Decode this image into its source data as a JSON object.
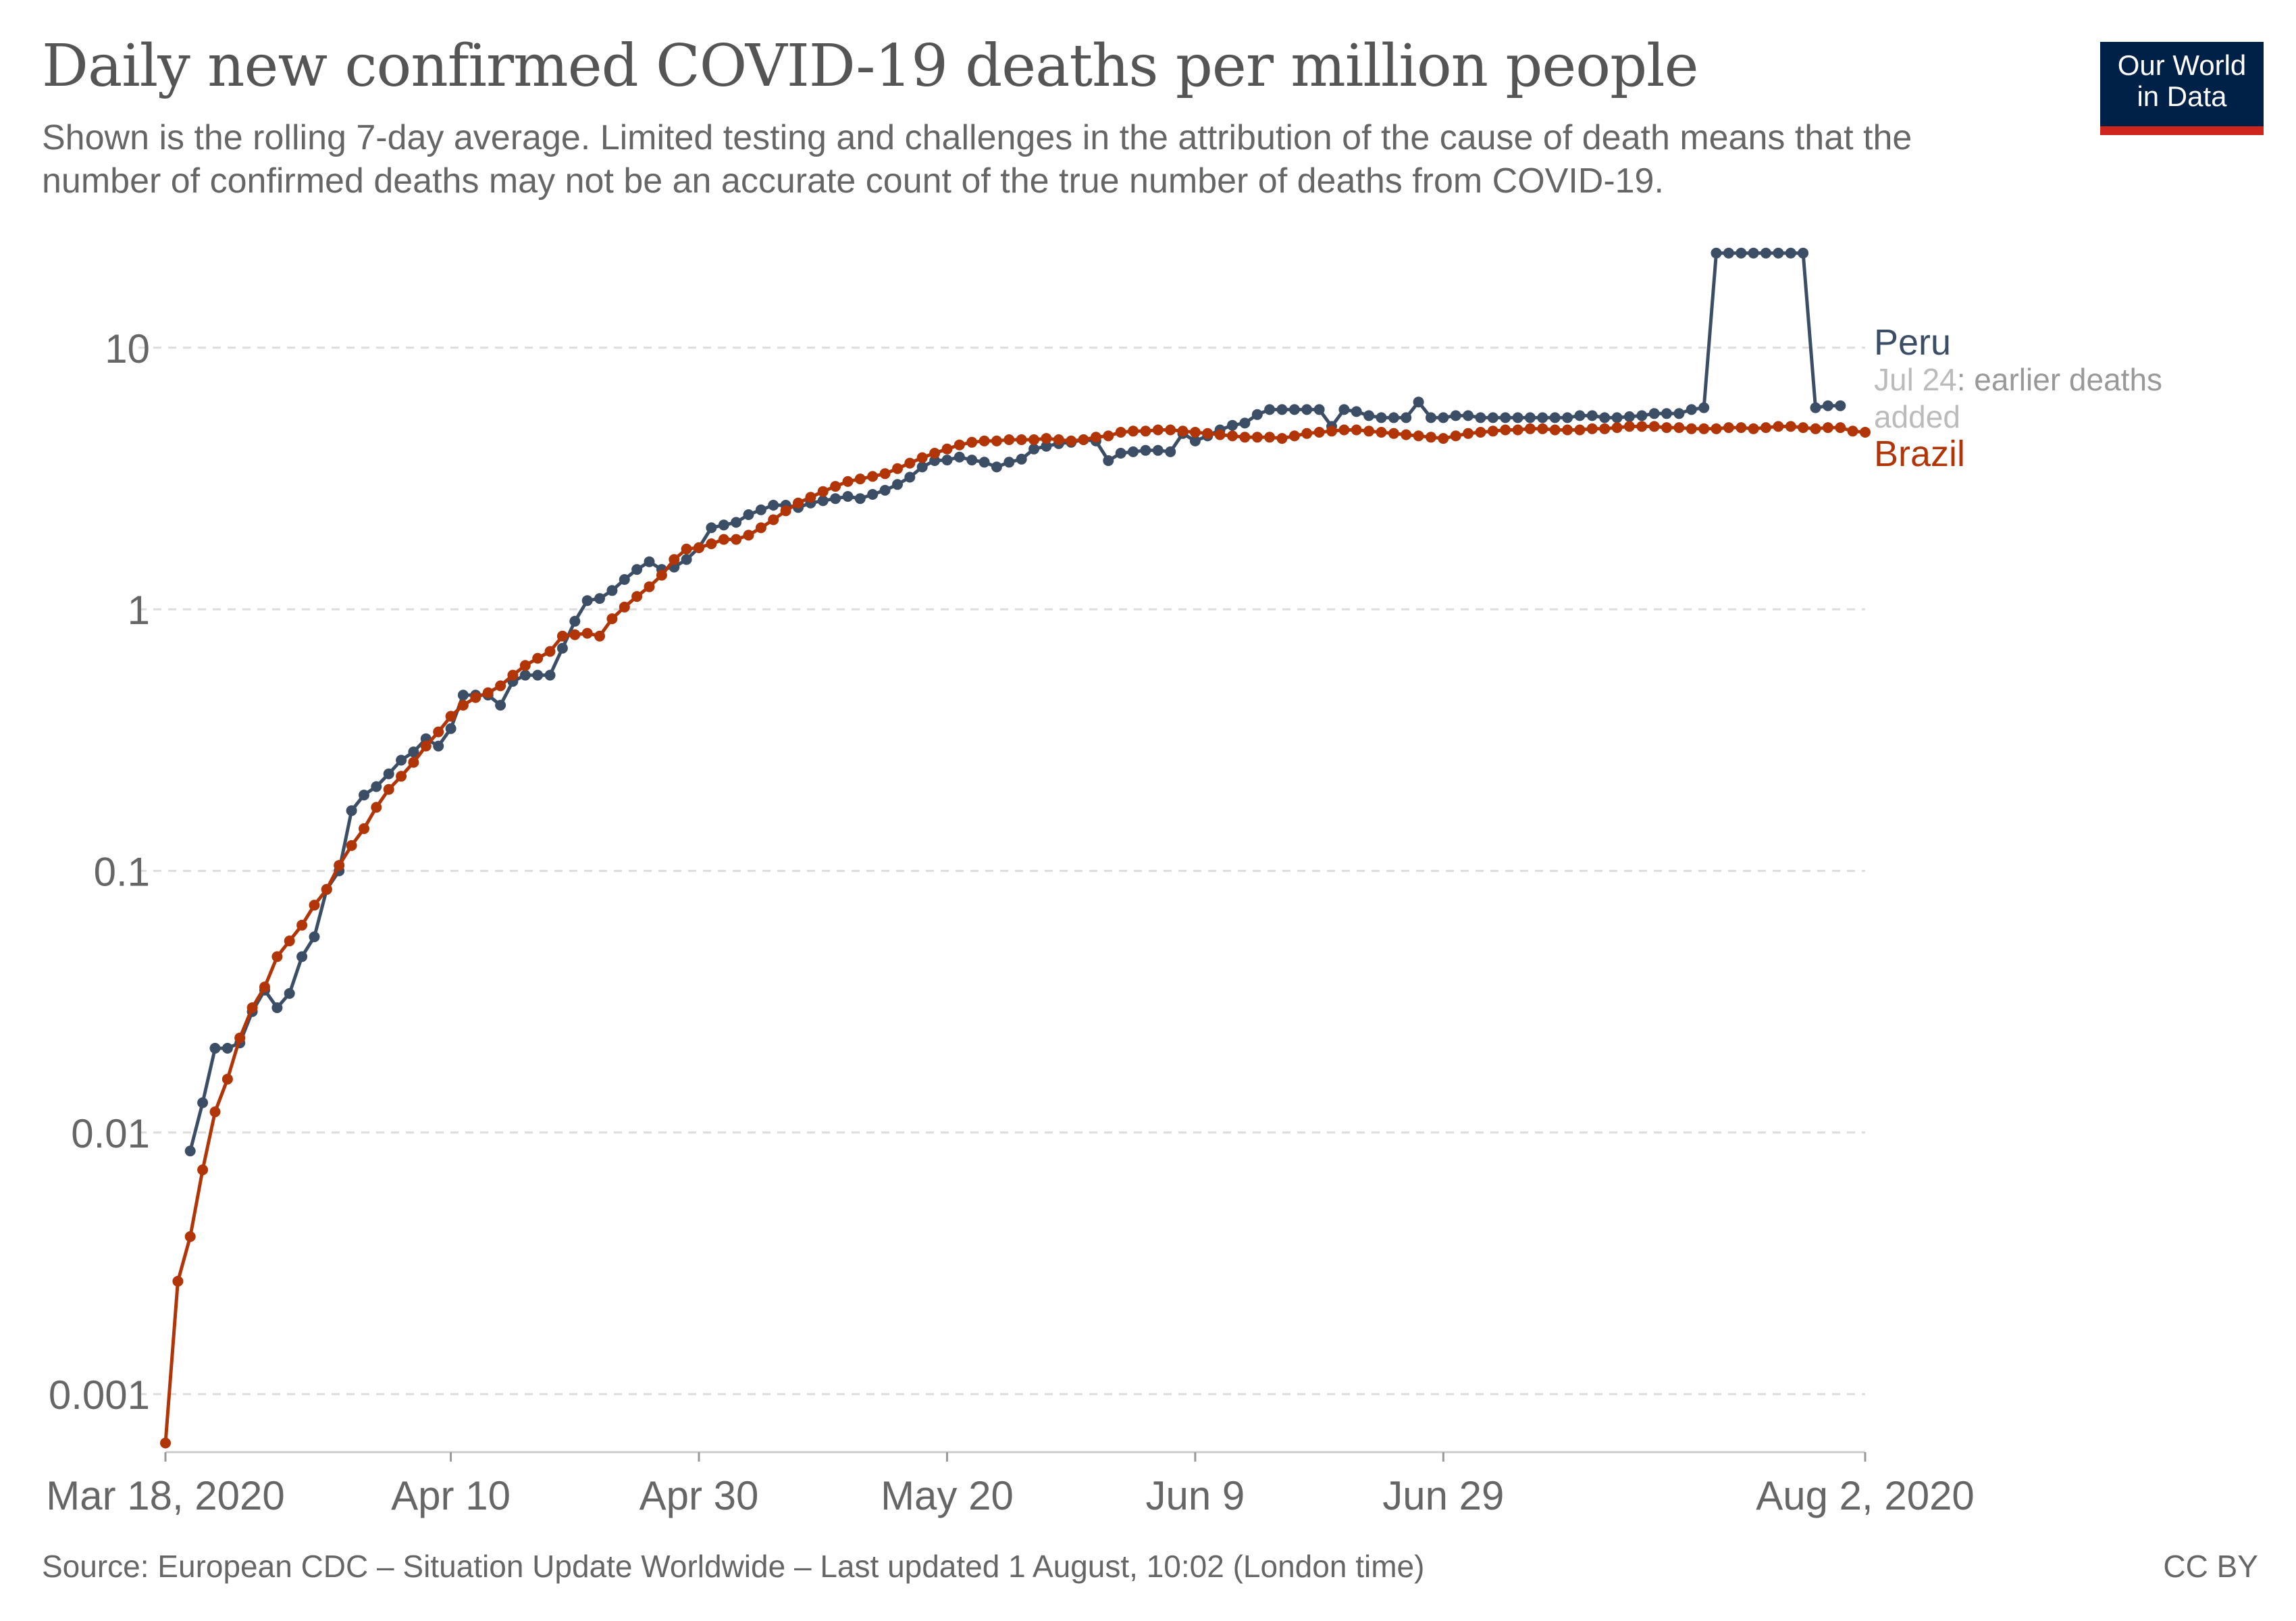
{
  "header": {
    "title": "Daily new confirmed COVID-19 deaths per million people",
    "subtitle": "Shown is the rolling 7-day average. Limited testing and challenges in the attribution of the cause of death means that the number of confirmed deaths may not be an accurate count of the true number of deaths from COVID-19."
  },
  "logo": {
    "line1": "Our World",
    "line2": "in Data"
  },
  "footer": {
    "source": "Source: European CDC – Situation Update Worldwide – Last updated 1 August, 10:02 (London time)",
    "license": "CC BY"
  },
  "chart_data": {
    "type": "line",
    "title": "Daily new confirmed COVID-19 deaths per million people",
    "xlabel": "",
    "ylabel": "",
    "yscale": "log",
    "ylim": [
      0.0006,
      30
    ],
    "x_start": "Mar 18, 2020",
    "x_days": 138,
    "x_ticks": [
      {
        "day": 0,
        "label": "Mar 18, 2020"
      },
      {
        "day": 23,
        "label": "Apr 10"
      },
      {
        "day": 43,
        "label": "Apr 30"
      },
      {
        "day": 63,
        "label": "May 20"
      },
      {
        "day": 83,
        "label": "Jun 9"
      },
      {
        "day": 103,
        "label": "Jun 29"
      },
      {
        "day": 137,
        "label": "Aug 2, 2020"
      }
    ],
    "y_ticks": [
      {
        "value": 0.001,
        "label": "0.001"
      },
      {
        "value": 0.01,
        "label": "0.01"
      },
      {
        "value": 0.1,
        "label": "0.1"
      },
      {
        "value": 1,
        "label": "1"
      },
      {
        "value": 10,
        "label": "10"
      }
    ],
    "grid": true,
    "annotation": {
      "series": "Peru",
      "date": "Jul 24",
      "text": ": earlier deaths added"
    },
    "series": [
      {
        "name": "Peru",
        "color": "#3c4e66",
        "start_day": 2,
        "values": [
          0.0085,
          0.013,
          0.021,
          0.021,
          0.022,
          0.029,
          0.035,
          0.03,
          0.034,
          0.047,
          0.056,
          0.085,
          0.1,
          0.17,
          0.195,
          0.21,
          0.235,
          0.265,
          0.285,
          0.32,
          0.3,
          0.35,
          0.47,
          0.47,
          0.47,
          0.43,
          0.53,
          0.56,
          0.56,
          0.56,
          0.71,
          0.9,
          1.08,
          1.1,
          1.18,
          1.3,
          1.42,
          1.52,
          1.42,
          1.45,
          1.55,
          1.72,
          2.05,
          2.1,
          2.15,
          2.3,
          2.4,
          2.5,
          2.5,
          2.45,
          2.55,
          2.6,
          2.65,
          2.7,
          2.65,
          2.75,
          2.85,
          3.0,
          3.2,
          3.5,
          3.7,
          3.72,
          3.82,
          3.72,
          3.65,
          3.5,
          3.65,
          3.75,
          4.1,
          4.2,
          4.3,
          4.35,
          4.45,
          4.4,
          3.7,
          3.95,
          4.0,
          4.05,
          4.05,
          4.0,
          4.7,
          4.4,
          4.6,
          4.85,
          5.05,
          5.15,
          5.55,
          5.8,
          5.8,
          5.8,
          5.8,
          5.8,
          5.0,
          5.8,
          5.7,
          5.5,
          5.4,
          5.4,
          5.4,
          6.2,
          5.4,
          5.4,
          5.5,
          5.5,
          5.4,
          5.4,
          5.4,
          5.4,
          5.4,
          5.4,
          5.4,
          5.4,
          5.5,
          5.5,
          5.4,
          5.4,
          5.45,
          5.5,
          5.6,
          5.6,
          5.6,
          5.8,
          5.9,
          23.0,
          23.0,
          23.0,
          23.0,
          23.0,
          23.0,
          23.0,
          23.0,
          5.9,
          6.0,
          6.0
        ]
      },
      {
        "name": "Brazil",
        "color": "#b13507",
        "start_day": 0,
        "values": [
          0.00065,
          0.0027,
          0.004,
          0.0072,
          0.012,
          0.016,
          0.023,
          0.03,
          0.036,
          0.047,
          0.054,
          0.062,
          0.074,
          0.085,
          0.105,
          0.125,
          0.145,
          0.175,
          0.205,
          0.23,
          0.26,
          0.3,
          0.34,
          0.39,
          0.43,
          0.46,
          0.48,
          0.51,
          0.56,
          0.61,
          0.65,
          0.69,
          0.79,
          0.8,
          0.81,
          0.79,
          0.92,
          1.02,
          1.12,
          1.22,
          1.35,
          1.55,
          1.7,
          1.72,
          1.78,
          1.85,
          1.85,
          1.92,
          2.05,
          2.2,
          2.38,
          2.55,
          2.68,
          2.82,
          2.95,
          3.08,
          3.15,
          3.22,
          3.3,
          3.45,
          3.62,
          3.8,
          3.95,
          4.1,
          4.25,
          4.35,
          4.4,
          4.4,
          4.45,
          4.45,
          4.45,
          4.5,
          4.45,
          4.4,
          4.45,
          4.55,
          4.6,
          4.75,
          4.8,
          4.8,
          4.85,
          4.85,
          4.8,
          4.75,
          4.7,
          4.65,
          4.6,
          4.55,
          4.55,
          4.55,
          4.5,
          4.6,
          4.7,
          4.75,
          4.8,
          4.85,
          4.85,
          4.8,
          4.75,
          4.7,
          4.65,
          4.6,
          4.55,
          4.5,
          4.6,
          4.7,
          4.75,
          4.8,
          4.85,
          4.85,
          4.9,
          4.9,
          4.85,
          4.85,
          4.85,
          4.9,
          4.9,
          4.95,
          5.0,
          5.0,
          5.0,
          4.95,
          4.95,
          4.9,
          4.9,
          4.9,
          4.95,
          4.95,
          4.9,
          4.95,
          5.0,
          5.0,
          4.95,
          4.9,
          4.95,
          4.95,
          4.8,
          4.75
        ]
      }
    ]
  }
}
